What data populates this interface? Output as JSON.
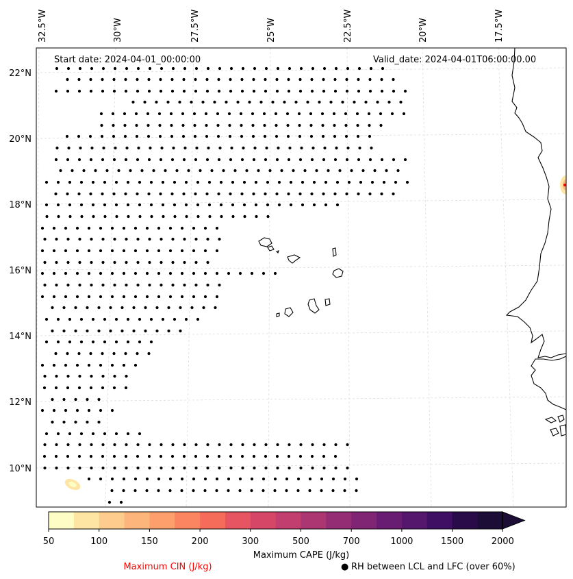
{
  "header": {
    "start_date": "Start date: 2024-04-01_00:00:00",
    "valid_date": "Valid_date: 2024-04-01T06:00:00.00"
  },
  "axes": {
    "lon_ticks": [
      "32.5°W",
      "30°W",
      "27.5°W",
      "25°W",
      "22.5°W",
      "20°W",
      "17.5°W"
    ],
    "lat_ticks": [
      "22°N",
      "20°N",
      "18°N",
      "16°N",
      "14°N",
      "12°N",
      "10°N"
    ],
    "lon_range": [
      -33.0,
      -15.4
    ],
    "lat_range": [
      8.9,
      22.8
    ],
    "grid": true
  },
  "colorbar": {
    "title": "Maximum CAPE (J/kg)",
    "tick_labels": [
      "50",
      "100",
      "150",
      "200",
      "300",
      "500",
      "700",
      "1000",
      "1500",
      "2000"
    ],
    "levels": [
      50,
      75,
      100,
      125,
      150,
      175,
      200,
      250,
      300,
      400,
      500,
      600,
      700,
      850,
      1000,
      1250,
      1500,
      1750,
      2000
    ],
    "colors": [
      "#fffdc6",
      "#fee5a3",
      "#fecc8c",
      "#fdb57c",
      "#fc9f6d",
      "#fa8560",
      "#f56c5b",
      "#e85562",
      "#d64667",
      "#c13e6f",
      "#ac3672",
      "#952d74",
      "#7f2574",
      "#691d72",
      "#55166e",
      "#3e0f63",
      "#2a0b49",
      "#1b0d35"
    ],
    "extend": "max"
  },
  "legend": {
    "cin_label": "Maximum CIN (J/kg)",
    "cin_color": "#ff0000",
    "rh_marker": "●",
    "rh_label": "RH between LCL and LFC (over 60%)"
  }
}
